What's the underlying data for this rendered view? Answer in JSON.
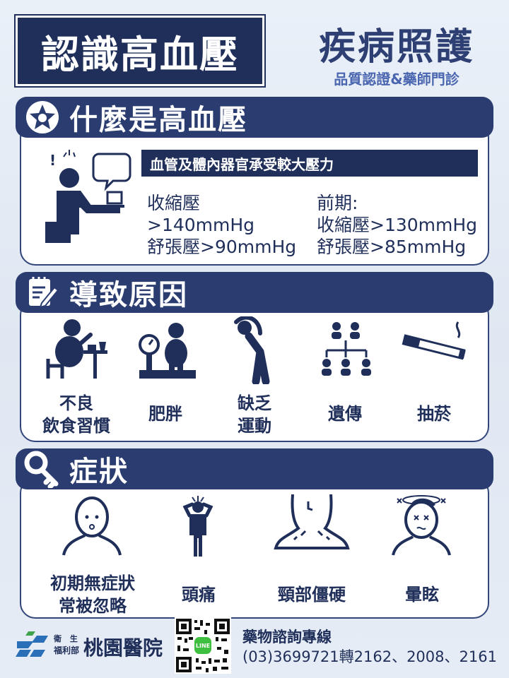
{
  "header": {
    "title": "認識高血壓",
    "category": "疾病照護",
    "subtitle": "品質認證&藥師門診"
  },
  "sections": {
    "what": {
      "heading": "什麼是高血壓",
      "icon": "star-icon",
      "banner": "血管及體內器官承受較大壓力",
      "hypertension": [
        "收縮壓",
        ">140mmHg",
        "舒張壓>90mmHg"
      ],
      "prehypertension": [
        "前期:",
        "收縮壓>130mmHg",
        "舒張壓>85mmHg"
      ]
    },
    "causes": {
      "heading": "導致原因",
      "icon": "notepad-pencil-icon",
      "items": [
        {
          "label": [
            "不良",
            "飲食習慣"
          ],
          "icon": "person-eating-icon"
        },
        {
          "label": [
            "肥胖"
          ],
          "icon": "weight-scale-icon"
        },
        {
          "label": [
            "缺乏",
            "運動"
          ],
          "icon": "person-stretching-icon"
        },
        {
          "label": [
            "遺傳"
          ],
          "icon": "family-tree-icon"
        },
        {
          "label": [
            "抽菸"
          ],
          "icon": "cigarette-icon"
        }
      ]
    },
    "symptoms": {
      "heading": "症狀",
      "icon": "key-icon",
      "items": [
        {
          "label": [
            "初期無症狀",
            "常被忽略"
          ],
          "icon": "person-calm-icon"
        },
        {
          "label": [
            "頭痛"
          ],
          "icon": "person-headache-icon"
        },
        {
          "label": [
            "頸部僵硬"
          ],
          "icon": "stiff-neck-icon"
        },
        {
          "label": [
            "暈眩"
          ],
          "icon": "dizzy-face-icon"
        }
      ]
    }
  },
  "footer": {
    "logo_small_top": "衛 生",
    "logo_small_bottom": "福利部",
    "hospital": "桃園醫院",
    "consult_title": "藥物諮詢專線",
    "consult_phone": "(03)3699721轉2162、2008、2161",
    "qr_badge": "LINE"
  },
  "colors": {
    "navy": "#1f2f5a",
    "header_bar": "#2b3d70",
    "accent_blue": "#4b66b0",
    "logo_blue": "#2a6fb8"
  }
}
